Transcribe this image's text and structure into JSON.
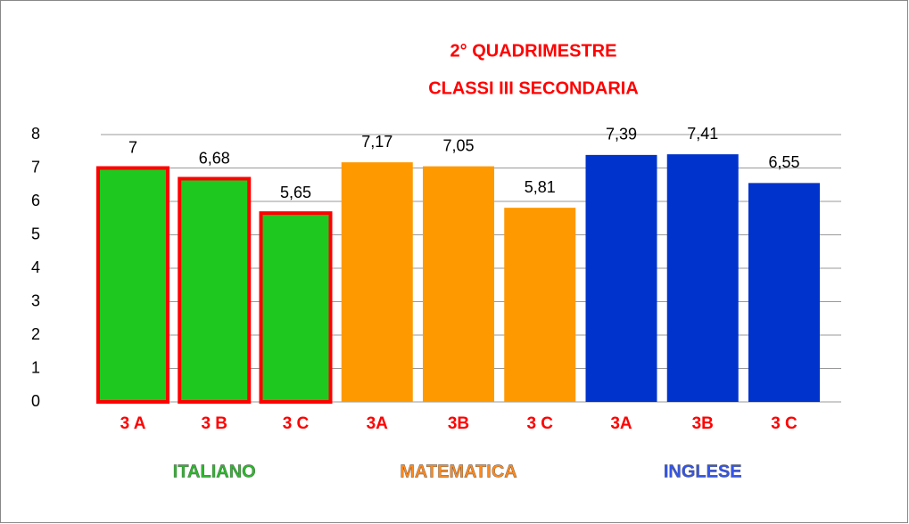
{
  "chart_data": {
    "type": "bar",
    "title": [
      "2° QUADRIMESTRE",
      "CLASSI  III SECONDARIA"
    ],
    "series": [
      {
        "name": "ITALIANO",
        "color": "#1ec81e",
        "edgecolor": "#ff0000",
        "label_color": "#2db82d",
        "categories": [
          "3 A",
          "3 B",
          "3 C"
        ],
        "values": [
          7,
          6.68,
          5.65
        ],
        "value_labels": [
          "7",
          "6,68",
          "5,65"
        ]
      },
      {
        "name": "MATEMATICA",
        "color": "#ff9900",
        "edgecolor": null,
        "label_color": "#ff8a1e",
        "categories": [
          "3A",
          "3B",
          "3 C"
        ],
        "values": [
          7.17,
          7.05,
          5.81
        ],
        "value_labels": [
          "7,17",
          "7,05",
          "5,81"
        ]
      },
      {
        "name": "INGLESE",
        "color": "#0033cc",
        "edgecolor": null,
        "label_color": "#3355ee",
        "categories": [
          "3A",
          "3B",
          "3 C"
        ],
        "values": [
          7.39,
          7.41,
          6.55
        ],
        "value_labels": [
          "7,39",
          "7,41",
          "6,55"
        ]
      }
    ],
    "ylim": [
      0,
      8
    ],
    "yticks": [
      0,
      1,
      2,
      3,
      4,
      5,
      6,
      7,
      8
    ],
    "grid": true
  }
}
